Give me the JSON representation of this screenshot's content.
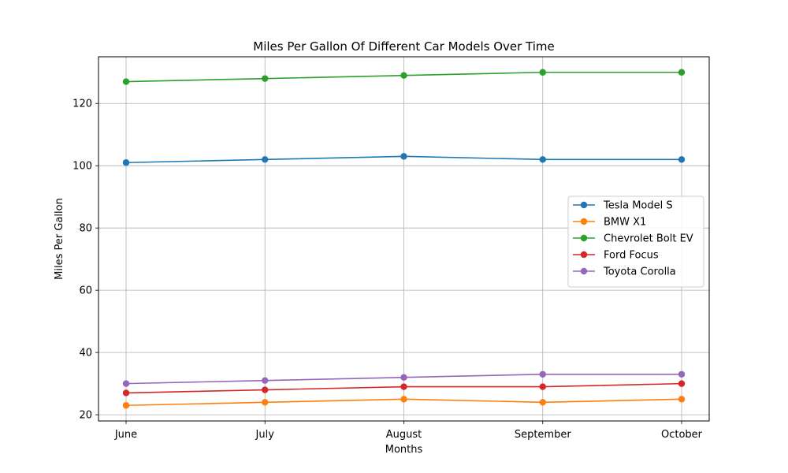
{
  "chart_data": {
    "type": "line",
    "title": "Miles Per Gallon Of Different Car Models Over Time",
    "xlabel": "Months",
    "ylabel": "Miles Per Gallon",
    "categories": [
      "June",
      "July",
      "August",
      "September",
      "October"
    ],
    "ylim": [
      18,
      135
    ],
    "yticks": [
      20,
      40,
      60,
      80,
      100,
      120
    ],
    "grid": true,
    "legend_position": "center-right",
    "series": [
      {
        "name": "Tesla Model S",
        "color": "#1f77b4",
        "values": [
          101,
          102,
          103,
          102,
          102
        ]
      },
      {
        "name": "BMW X1",
        "color": "#ff7f0e",
        "values": [
          23,
          24,
          25,
          24,
          25
        ]
      },
      {
        "name": "Chevrolet Bolt EV",
        "color": "#2ca02c",
        "values": [
          127,
          128,
          129,
          130,
          130
        ]
      },
      {
        "name": "Ford Focus",
        "color": "#d62728",
        "values": [
          27,
          28,
          29,
          29,
          30
        ]
      },
      {
        "name": "Toyota Corolla",
        "color": "#9467bd",
        "values": [
          30,
          31,
          32,
          33,
          33
        ]
      }
    ]
  }
}
